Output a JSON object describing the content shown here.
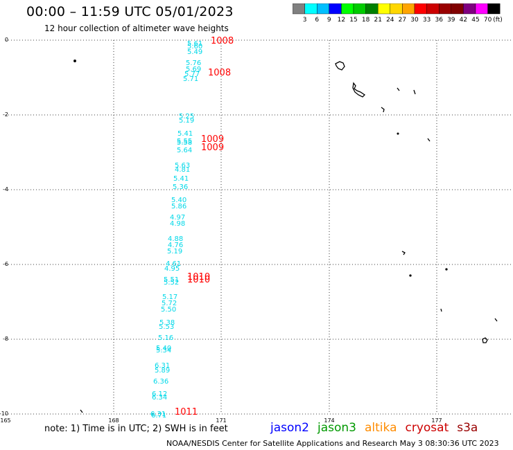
{
  "title": "00:00 – 11:59 UTC 05/01/2023",
  "subtitle": "12 hour collection of altimeter wave heights",
  "legend": {
    "colors": [
      "#808080",
      "#00ffff",
      "#00bfff",
      "#0000ff",
      "#00ff00",
      "#00cc00",
      "#008000",
      "#ffff00",
      "#ffd700",
      "#ffa500",
      "#ff0000",
      "#cc0000",
      "#990000",
      "#800000",
      "#800080",
      "#ff00ff",
      "#000000"
    ],
    "labels": [
      "3",
      "6",
      "9",
      "12",
      "15",
      "18",
      "21",
      "24",
      "27",
      "30",
      "33",
      "36",
      "39",
      "42",
      "45",
      "70",
      "(ft)"
    ]
  },
  "lat_labels": [
    "0",
    "-2",
    "-4",
    "-6",
    "-8",
    "-10"
  ],
  "lon_labels": [
    "165",
    "168",
    "171",
    "174",
    "177"
  ],
  "swh_readings": [
    "5.61",
    "5.60",
    "5.49",
    "5.76",
    "5.69",
    "5.77",
    "5.71",
    "5.25",
    "5.19",
    "5.41",
    "5.55",
    "5.58",
    "5.64",
    "5.63",
    "4.81",
    "5.41",
    "5.36",
    "5.40",
    "5.86",
    "4.97",
    "4.98",
    "4.88",
    "4.76",
    "5.19",
    "4.61",
    "4.95",
    "5.51",
    "5.52",
    "5.17",
    "5.72",
    "5.50",
    "5.38",
    "5.53",
    "5.16",
    "5.40",
    "5.34",
    "6.31",
    "5.89",
    "6.36",
    "6.12",
    "6.34",
    "6.31",
    "6.71"
  ],
  "pressure_readings": [
    "1008",
    "1008",
    "1009",
    "1009",
    "1010",
    "1010",
    "1011"
  ],
  "colors": {
    "swh": "#00d8e8",
    "pressure": "#ff0000",
    "grid": "#000000"
  },
  "note": "note: 1) Time is in UTC; 2) SWH is in feet",
  "satellites": [
    {
      "name": "jason2",
      "color": "#0000ff"
    },
    {
      "name": "jason3",
      "color": "#009900"
    },
    {
      "name": "altika",
      "color": "#ff8c00"
    },
    {
      "name": "cryosat",
      "color": "#cc0000"
    },
    {
      "name": "s3a",
      "color": "#990000"
    }
  ],
  "credit": "NOAA/NESDIS Center for Satellite Applications and Research   May  3 08:30:36 UTC 2023"
}
